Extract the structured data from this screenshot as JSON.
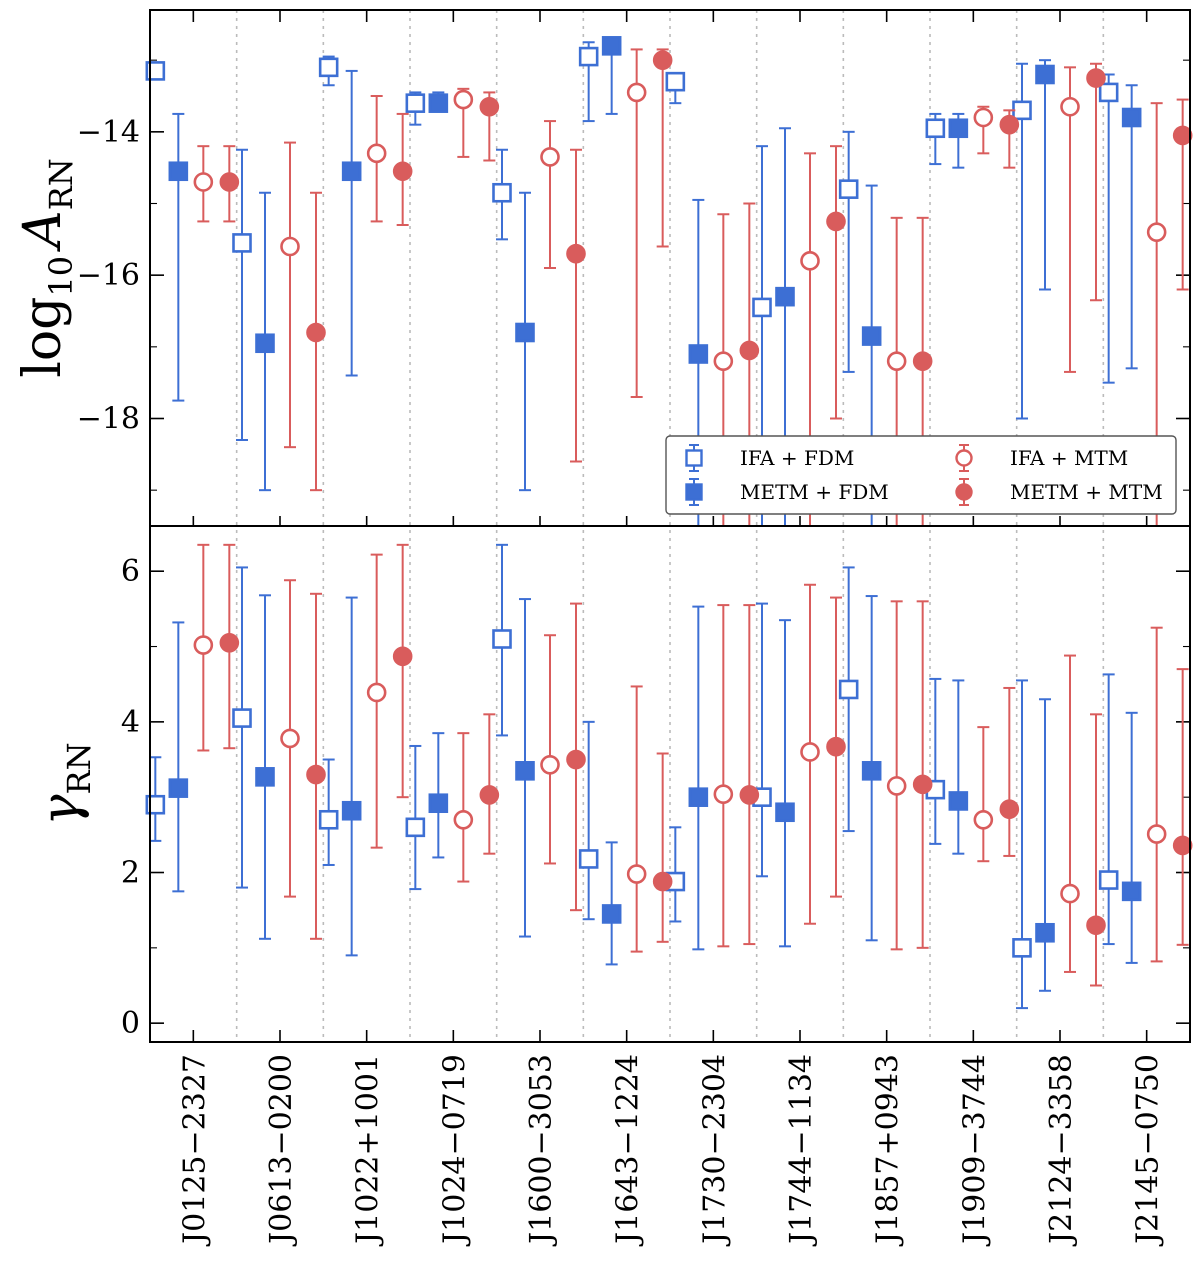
{
  "chart_data": {
    "type": "errorbar",
    "categories": [
      "J0125−2327",
      "J0613−0200",
      "J1022+1001",
      "J1024−0719",
      "J1600−3053",
      "J1643−1224",
      "J1730−2304",
      "J1744−1134",
      "J1857+0943",
      "J1909−3744",
      "J2124−3358",
      "J2145−0750"
    ],
    "panels": [
      {
        "id": "top",
        "ylabel_main": "log",
        "ylabel_sub": "10",
        "ylabel_var": "A",
        "ylabel_var_sub": "RN",
        "ylim": [
          -19.5,
          -12.3
        ],
        "yticks": [
          -18,
          -16,
          -14
        ],
        "ytick_labels": [
          "−18",
          "−16",
          "−14"
        ],
        "series": [
          {
            "name": "IFA + FDM",
            "color": "#3d6fd4",
            "marker": "square",
            "filled": false,
            "values": [
              -13.15,
              -15.55,
              -13.1,
              -13.6,
              -14.85,
              -12.95,
              -13.3,
              -16.45,
              -14.8,
              -13.95,
              -13.7,
              -13.45
            ],
            "lower": [
              -13.15,
              -18.3,
              -13.35,
              -13.9,
              -15.5,
              -13.85,
              -13.6,
              -19.5,
              -17.35,
              -14.45,
              -18.0,
              -17.5
            ],
            "upper": [
              -13.15,
              -14.25,
              -12.95,
              -13.45,
              -14.25,
              -12.75,
              -13.2,
              -14.2,
              -14.0,
              -13.75,
              -13.05,
              -13.2
            ]
          },
          {
            "name": "METM + FDM",
            "color": "#3d6fd4",
            "marker": "square",
            "filled": true,
            "values": [
              -14.55,
              -16.95,
              -14.55,
              -13.6,
              -16.8,
              -12.8,
              -17.1,
              -16.3,
              -16.85,
              -13.95,
              -13.2,
              -13.8
            ],
            "lower": [
              -17.75,
              -19.0,
              -17.4,
              -13.6,
              -19.0,
              -13.75,
              -19.5,
              -19.5,
              -19.5,
              -14.5,
              -16.2,
              -17.3
            ],
            "upper": [
              -13.75,
              -14.85,
              -13.15,
              -13.45,
              -14.85,
              -12.75,
              -14.95,
              -13.95,
              -14.75,
              -13.75,
              -13.0,
              -13.35
            ]
          },
          {
            "name": "IFA + MTM",
            "color": "#d95c5c",
            "marker": "circle",
            "filled": false,
            "values": [
              -14.7,
              -15.6,
              -14.3,
              -13.55,
              -14.35,
              -13.45,
              -17.2,
              -15.8,
              -17.2,
              -13.8,
              -13.65,
              -15.4
            ],
            "lower": [
              -15.25,
              -18.4,
              -15.25,
              -14.35,
              -15.9,
              -17.7,
              -19.5,
              -19.5,
              -19.5,
              -14.3,
              -17.35,
              -19.5
            ],
            "upper": [
              -14.2,
              -14.15,
              -13.5,
              -13.4,
              -13.85,
              -12.85,
              -15.15,
              -14.3,
              -15.2,
              -13.65,
              -13.1,
              -13.6
            ]
          },
          {
            "name": "METM + MTM",
            "color": "#d95c5c",
            "marker": "circle",
            "filled": true,
            "values": [
              -14.7,
              -16.8,
              -14.55,
              -13.65,
              -15.7,
              -13.0,
              -17.05,
              -15.25,
              -17.2,
              -13.9,
              -13.25,
              -14.05
            ],
            "lower": [
              -15.25,
              -19.0,
              -15.3,
              -14.4,
              -18.6,
              -15.6,
              -19.5,
              -18.0,
              -19.5,
              -14.5,
              -16.35,
              -16.2
            ],
            "upper": [
              -14.2,
              -14.85,
              -13.75,
              -13.45,
              -14.25,
              -12.85,
              -15.0,
              -14.2,
              -15.2,
              -13.7,
              -13.05,
              -13.55
            ]
          }
        ]
      },
      {
        "id": "bottom",
        "ylabel_var": "γ",
        "ylabel_var_sub": "RN",
        "ylim": [
          -0.25,
          6.6
        ],
        "yticks": [
          0,
          2,
          4,
          6
        ],
        "ytick_labels": [
          "0",
          "2",
          "4",
          "6"
        ],
        "series": [
          {
            "name": "IFA + FDM",
            "color": "#3d6fd4",
            "marker": "square",
            "filled": false,
            "values": [
              2.9,
              4.05,
              2.7,
              2.6,
              5.1,
              2.18,
              1.88,
              3.0,
              4.43,
              3.1,
              1.0,
              1.9
            ],
            "lower": [
              2.42,
              1.8,
              2.1,
              1.78,
              3.82,
              1.38,
              1.35,
              1.95,
              2.55,
              2.38,
              0.2,
              1.05
            ],
            "upper": [
              3.53,
              6.05,
              3.5,
              3.68,
              6.35,
              4.0,
              2.6,
              5.57,
              6.05,
              4.57,
              4.55,
              4.63
            ]
          },
          {
            "name": "METM + FDM",
            "color": "#3d6fd4",
            "marker": "square",
            "filled": true,
            "values": [
              3.12,
              3.27,
              2.82,
              2.92,
              3.35,
              1.45,
              3.0,
              2.8,
              3.35,
              2.95,
              1.2,
              1.75
            ],
            "lower": [
              1.75,
              1.12,
              0.9,
              2.2,
              1.15,
              0.78,
              0.98,
              1.02,
              1.1,
              2.25,
              0.43,
              0.8
            ],
            "upper": [
              5.32,
              5.68,
              5.65,
              3.85,
              5.63,
              2.4,
              5.53,
              5.35,
              5.67,
              4.55,
              4.3,
              4.12
            ]
          },
          {
            "name": "IFA + MTM",
            "color": "#d95c5c",
            "marker": "circle",
            "filled": false,
            "values": [
              5.02,
              3.78,
              4.39,
              2.7,
              3.43,
              1.98,
              3.04,
              3.6,
              3.15,
              2.7,
              1.72,
              2.51
            ],
            "lower": [
              3.62,
              1.68,
              2.33,
              1.88,
              2.12,
              0.95,
              1.02,
              1.32,
              0.98,
              2.15,
              0.68,
              0.82
            ],
            "upper": [
              6.35,
              5.88,
              6.22,
              3.85,
              5.15,
              4.47,
              5.55,
              5.82,
              5.6,
              3.93,
              4.88,
              5.25
            ]
          },
          {
            "name": "METM + MTM",
            "color": "#d95c5c",
            "marker": "circle",
            "filled": true,
            "values": [
              5.05,
              3.3,
              4.87,
              3.03,
              3.5,
              1.88,
              3.03,
              3.67,
              3.17,
              2.84,
              1.3,
              2.36
            ],
            "lower": [
              3.65,
              1.12,
              3.0,
              2.25,
              1.5,
              1.08,
              1.05,
              1.68,
              1.0,
              2.22,
              0.5,
              1.04
            ],
            "upper": [
              6.35,
              5.7,
              6.35,
              4.1,
              5.57,
              3.58,
              5.55,
              5.65,
              5.6,
              4.45,
              4.1,
              4.7
            ]
          }
        ]
      }
    ],
    "legend": {
      "placement": "lower-right of top panel",
      "entries": [
        "IFA + FDM",
        "METM + FDM",
        "IFA + MTM",
        "METM + MTM"
      ]
    }
  }
}
